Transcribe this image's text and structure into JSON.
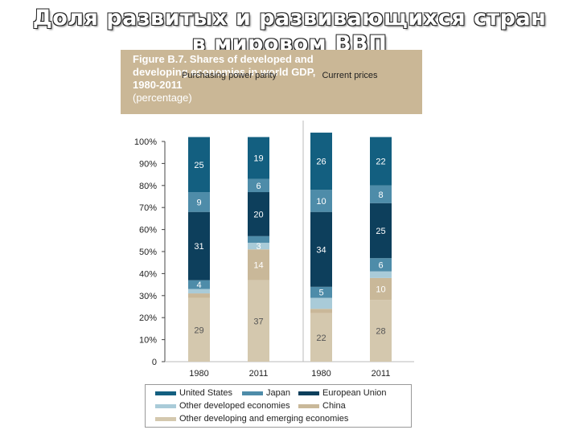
{
  "slide_title": {
    "line1": "Доля развитых и развивающихся стран",
    "line2": "в мировом ВВП"
  },
  "figure": {
    "caption_line1": "Figure B.7. Shares of developed and",
    "caption_line2": "developing economies in world GDP,",
    "caption_line3": "1980-2011",
    "caption_line4": "(percentage)"
  },
  "chart_data": {
    "type": "bar",
    "stacked": true,
    "groups": [
      "Purchasing power parity",
      "Current prices"
    ],
    "categories": [
      "1980",
      "2011",
      "1980",
      "2011"
    ],
    "y_ticks": [
      "0",
      "10%",
      "20%",
      "30%",
      "40%",
      "50%",
      "60%",
      "70%",
      "80%",
      "90%",
      "100%"
    ],
    "ylim": [
      0,
      100
    ],
    "series": [
      {
        "name": "Other developing and emerging economies",
        "color": "#d4c8ae",
        "label_color": "#555555",
        "values": [
          29,
          37,
          22,
          28
        ]
      },
      {
        "name": "China",
        "color": "#c9b899",
        "label_color": "#ffffff",
        "values": [
          2,
          14,
          2,
          10
        ]
      },
      {
        "name": "Other developed economies",
        "color": "#a9cbd8",
        "label_color": "#ffffff",
        "values": [
          2,
          3,
          5,
          3
        ]
      },
      {
        "name": "Japan",
        "color": "#4e8ca9",
        "label_color": "#ffffff",
        "values": [
          4,
          3,
          5,
          6
        ]
      },
      {
        "name": "European Union",
        "color": "#0d3f5c",
        "label_color": "#ffffff",
        "values": [
          31,
          20,
          34,
          25
        ]
      },
      {
        "name": "Japan",
        "color": "#4e8ca9",
        "label_color": "#ffffff",
        "values": [
          9,
          6,
          10,
          8
        ]
      },
      {
        "name": "United States",
        "color": "#135f80",
        "label_color": "#ffffff",
        "values": [
          25,
          19,
          26,
          22
        ]
      }
    ],
    "data_labels": [
      [
        "29",
        "",
        "",
        "4",
        "31",
        "9",
        "25"
      ],
      [
        "37",
        "14",
        "3",
        "",
        "20",
        "6",
        "19"
      ],
      [
        "22",
        "",
        "",
        "5",
        "34",
        "10",
        "26"
      ],
      [
        "28",
        "10",
        "",
        "6",
        "25",
        "8",
        "22"
      ]
    ],
    "legend": [
      {
        "label": "United States",
        "color": "#135f80"
      },
      {
        "label": "Japan",
        "color": "#4e8ca9"
      },
      {
        "label": "European Union",
        "color": "#0d3f5c"
      },
      {
        "label": "Other developed economies",
        "color": "#a9cbd8"
      },
      {
        "label": "China",
        "color": "#c9b899"
      },
      {
        "label": "Other developing and emerging economies",
        "color": "#d4c8ae"
      }
    ]
  }
}
